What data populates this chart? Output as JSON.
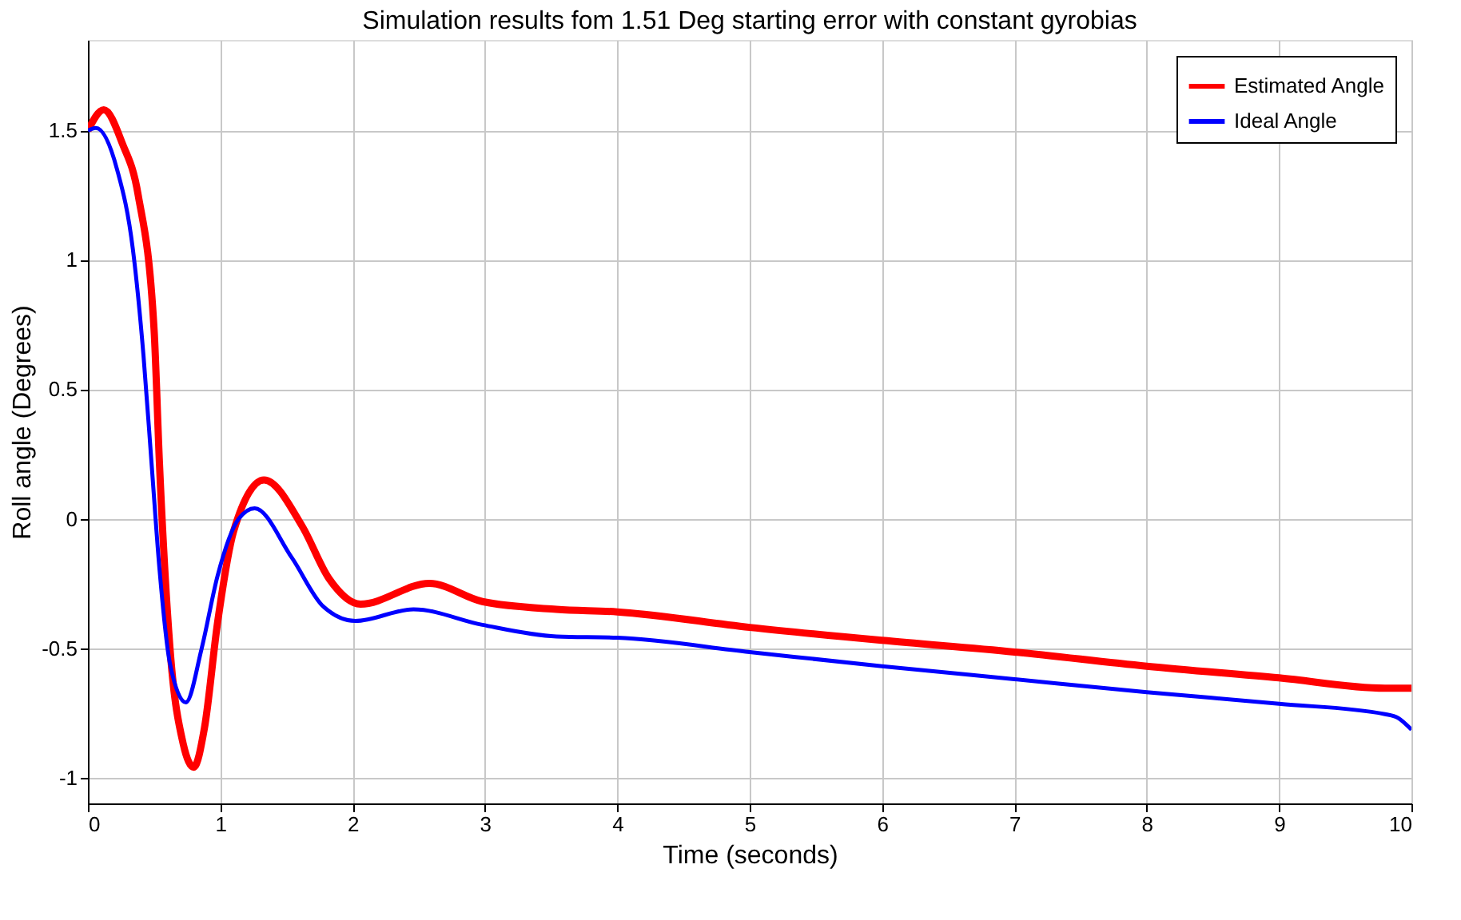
{
  "chart_data": {
    "type": "line",
    "title": "Simulation results fom 1.51 Deg starting error with constant gyrobias",
    "xlabel": "Time (seconds)",
    "ylabel": "Roll angle (Degrees)",
    "xlim": [
      0,
      10
    ],
    "xticks": [
      0,
      1,
      2,
      3,
      4,
      5,
      6,
      7,
      8,
      9,
      10
    ],
    "ylim": [
      -1.1,
      1.85
    ],
    "yticks": [
      -1,
      -0.5,
      0,
      0.5,
      1,
      1.5
    ],
    "grid": true,
    "legend": "top right",
    "line_style": "solid",
    "marker": "none",
    "series": [
      {
        "name": "Estimated Angle",
        "color": "#ff0000",
        "x": [
          0,
          0.12,
          0.26,
          0.38,
          0.5,
          0.54,
          0.62,
          0.72,
          0.8,
          0.88,
          0.98,
          1.1,
          1.33,
          1.62,
          1.82,
          2.06,
          2.58,
          2.98,
          3.54,
          4,
          5,
          6,
          7,
          8,
          9,
          9.8,
          10
        ],
        "values": [
          1.5,
          1.58,
          1.45,
          1.25,
          0.73,
          0.22,
          -0.5,
          -0.87,
          -0.96,
          -0.81,
          -0.4,
          -0.05,
          0.15,
          -0.03,
          -0.23,
          -0.33,
          -0.25,
          -0.32,
          -0.35,
          -0.36,
          -0.42,
          -0.47,
          -0.515,
          -0.57,
          -0.615,
          -0.655,
          -0.655
        ]
      },
      {
        "name": "Ideal Angle",
        "color": "#0000ff",
        "x": [
          0,
          0.06,
          0.22,
          0.34,
          0.42,
          0.48,
          0.54,
          0.62,
          0.74,
          0.86,
          0.98,
          1.14,
          1.26,
          1.54,
          1.78,
          2.02,
          2.46,
          2.98,
          3.54,
          4,
          5,
          6,
          7,
          8,
          9,
          9.8,
          9.9,
          10
        ],
        "values": [
          1.5,
          1.51,
          1.35,
          1.04,
          0.63,
          0.22,
          -0.19,
          -0.56,
          -0.71,
          -0.5,
          -0.22,
          0,
          0.04,
          -0.15,
          -0.34,
          -0.395,
          -0.35,
          -0.41,
          -0.455,
          -0.46,
          -0.515,
          -0.57,
          -0.62,
          -0.67,
          -0.715,
          -0.755,
          -0.77,
          -0.815
        ]
      }
    ]
  }
}
